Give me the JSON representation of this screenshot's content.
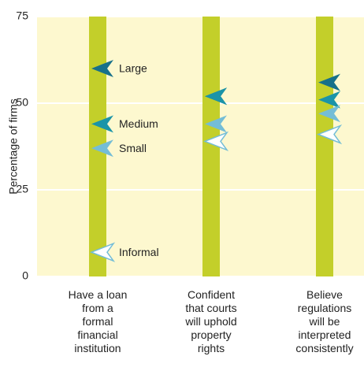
{
  "chart_data": {
    "type": "arrow-dot",
    "ylabel": "Percentage of firms",
    "categories": [
      "Have a loan\nfrom a\nformal\nfinancial\ninstitution",
      "Confident\nthat courts\nwill uphold\nproperty\nrights",
      "Believe\nregulations\nwill be\ninterpreted\nconsistently"
    ],
    "series": [
      {
        "name": "Large",
        "color": "#17708a",
        "values": [
          60,
          52,
          56
        ]
      },
      {
        "name": "Medium",
        "color": "#1b94a8",
        "values": [
          44,
          52,
          51
        ]
      },
      {
        "name": "Small",
        "color": "#74bdd6",
        "values": [
          37,
          44,
          47
        ]
      },
      {
        "name": "Informal",
        "color": "#74bdd6",
        "values": [
          7,
          39,
          41
        ]
      }
    ],
    "ylim": [
      0,
      75
    ],
    "yticks": [
      0,
      25,
      50,
      75
    ],
    "grid": true
  }
}
